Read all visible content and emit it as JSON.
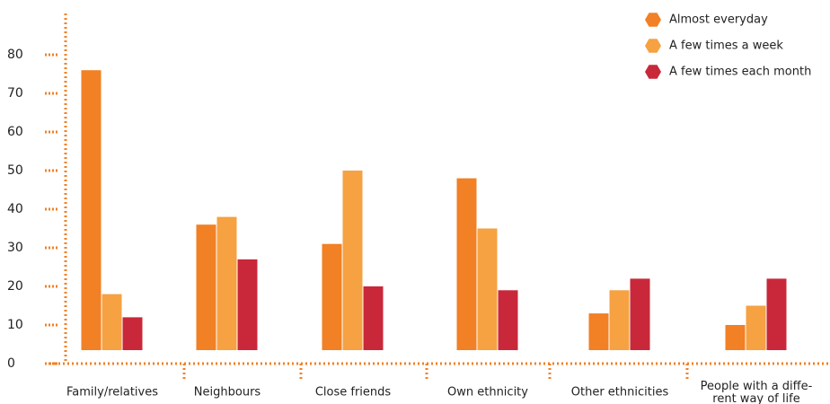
{
  "chart_data": {
    "type": "bar",
    "categories": [
      "Family/relatives",
      "Neighbours",
      "Close friends",
      "Own ethnicity",
      "Other ethnicities",
      "People with a diffe-\nrent way of life"
    ],
    "series": [
      {
        "name": "Almost everyday",
        "color": "#f28024",
        "values": [
          76,
          36,
          31,
          48,
          13,
          10
        ]
      },
      {
        "name": "A few times a week",
        "color": "#f6a142",
        "values": [
          18,
          38,
          50,
          35,
          19,
          15
        ]
      },
      {
        "name": "A few times each month",
        "color": "#c9283a",
        "values": [
          12,
          27,
          20,
          19,
          22,
          22
        ]
      }
    ],
    "ylim": [
      0,
      80
    ],
    "yticks": [
      0,
      10,
      20,
      30,
      40,
      50,
      60,
      70,
      80
    ],
    "legend": "top-right"
  }
}
